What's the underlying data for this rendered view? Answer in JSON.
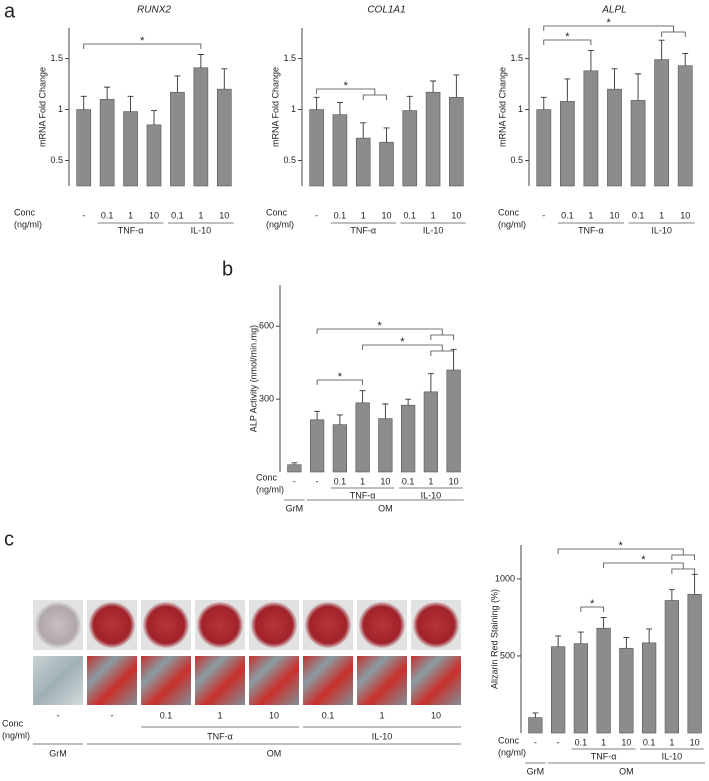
{
  "panel_labels": [
    "a",
    "b",
    "c"
  ],
  "chart_data": [
    {
      "type": "bar",
      "title": "RUNX2",
      "y_label": "mRNA Fold Change",
      "conc_label": [
        "Conc",
        "(ng/ml)"
      ],
      "categories": [
        "-",
        "0.1",
        "1",
        "10",
        "0.1",
        "1",
        "10"
      ],
      "values": [
        1.0,
        1.1,
        0.98,
        0.85,
        1.17,
        1.41,
        1.2
      ],
      "errors": [
        0.13,
        0.12,
        0.15,
        0.14,
        0.16,
        0.13,
        0.2
      ],
      "color": "#8c8c8c",
      "ylim": [
        0.25,
        1.8
      ],
      "yticks": [
        0.5,
        1,
        1.5
      ],
      "groups": [
        "TNF-α",
        "IL-10"
      ],
      "annotations": [
        "*"
      ]
    },
    {
      "type": "bar",
      "title": "COL1A1",
      "y_label": "mRNA Fold Change",
      "conc_label": [
        "Conc",
        "(ng/ml)"
      ],
      "categories": [
        "-",
        "0.1",
        "1",
        "10",
        "0.1",
        "1",
        "10"
      ],
      "values": [
        1.0,
        0.95,
        0.72,
        0.68,
        0.99,
        1.17,
        1.12
      ],
      "errors": [
        0.12,
        0.12,
        0.15,
        0.14,
        0.14,
        0.11,
        0.22
      ],
      "color": "#8c8c8c",
      "ylim": [
        0.25,
        1.8
      ],
      "yticks": [
        0.5,
        1,
        1.5
      ],
      "groups": [
        "TNF-α",
        "IL-10"
      ],
      "annotations": [
        "*"
      ]
    },
    {
      "type": "bar",
      "title": "ALPL",
      "y_label": "mRNA Fold Change",
      "conc_label": [
        "Conc",
        "(ng/ml)"
      ],
      "categories": [
        "-",
        "0.1",
        "1",
        "10",
        "0.1",
        "1",
        "10"
      ],
      "values": [
        1.0,
        1.08,
        1.38,
        1.2,
        1.09,
        1.49,
        1.43
      ],
      "errors": [
        0.12,
        0.22,
        0.2,
        0.2,
        0.26,
        0.19,
        0.12
      ],
      "color": "#8c8c8c",
      "ylim": [
        0.25,
        1.8
      ],
      "yticks": [
        0.5,
        1,
        1.5
      ],
      "groups": [
        "TNF-α",
        "IL-10"
      ],
      "annotations": [
        "*",
        "*"
      ]
    },
    {
      "type": "bar",
      "y_label": "ALP Activity (nmol/min.mg)",
      "conc_label": [
        "Conc",
        "(ng/ml)"
      ],
      "categories": [
        "-",
        "-",
        "0.1",
        "1",
        "10",
        "0.1",
        "1",
        "10"
      ],
      "values": [
        30,
        215,
        195,
        285,
        220,
        275,
        330,
        420
      ],
      "errors": [
        8,
        35,
        40,
        50,
        60,
        25,
        75,
        85
      ],
      "color": "#8c8c8c",
      "ylim": [
        0,
        770
      ],
      "yticks": [
        300,
        600
      ],
      "groups": [
        "TNF-α",
        "IL-10"
      ],
      "media": [
        "GrM",
        "OM"
      ],
      "annotations": [
        "*",
        "*",
        "*"
      ]
    },
    {
      "type": "bar",
      "y_label": "Alizarin Red Staining (%)",
      "conc_label": [
        "Conc",
        "(ng/ml)"
      ],
      "categories": [
        "-",
        "-",
        "0.1",
        "1",
        "10",
        "0.1",
        "1",
        "10"
      ],
      "values": [
        100,
        560,
        580,
        680,
        550,
        585,
        860,
        900
      ],
      "errors": [
        30,
        70,
        75,
        70,
        70,
        90,
        70,
        130
      ],
      "color": "#8c8c8c",
      "ylim": [
        0,
        1220
      ],
      "yticks": [
        500,
        1000
      ],
      "groups": [
        "TNF-α",
        "IL-10"
      ],
      "media": [
        "GrM",
        "OM"
      ],
      "annotations": [
        "*",
        "*",
        "*"
      ]
    }
  ],
  "plates": {
    "conc_label": [
      "Conc",
      "(ng/ml)"
    ],
    "concentrations": [
      "-",
      "-",
      "0.1",
      "1",
      "10",
      "0.1",
      "1",
      "10"
    ],
    "groups": [
      "TNF-α",
      "IL-10"
    ],
    "media": [
      "GrM",
      "OM"
    ]
  }
}
